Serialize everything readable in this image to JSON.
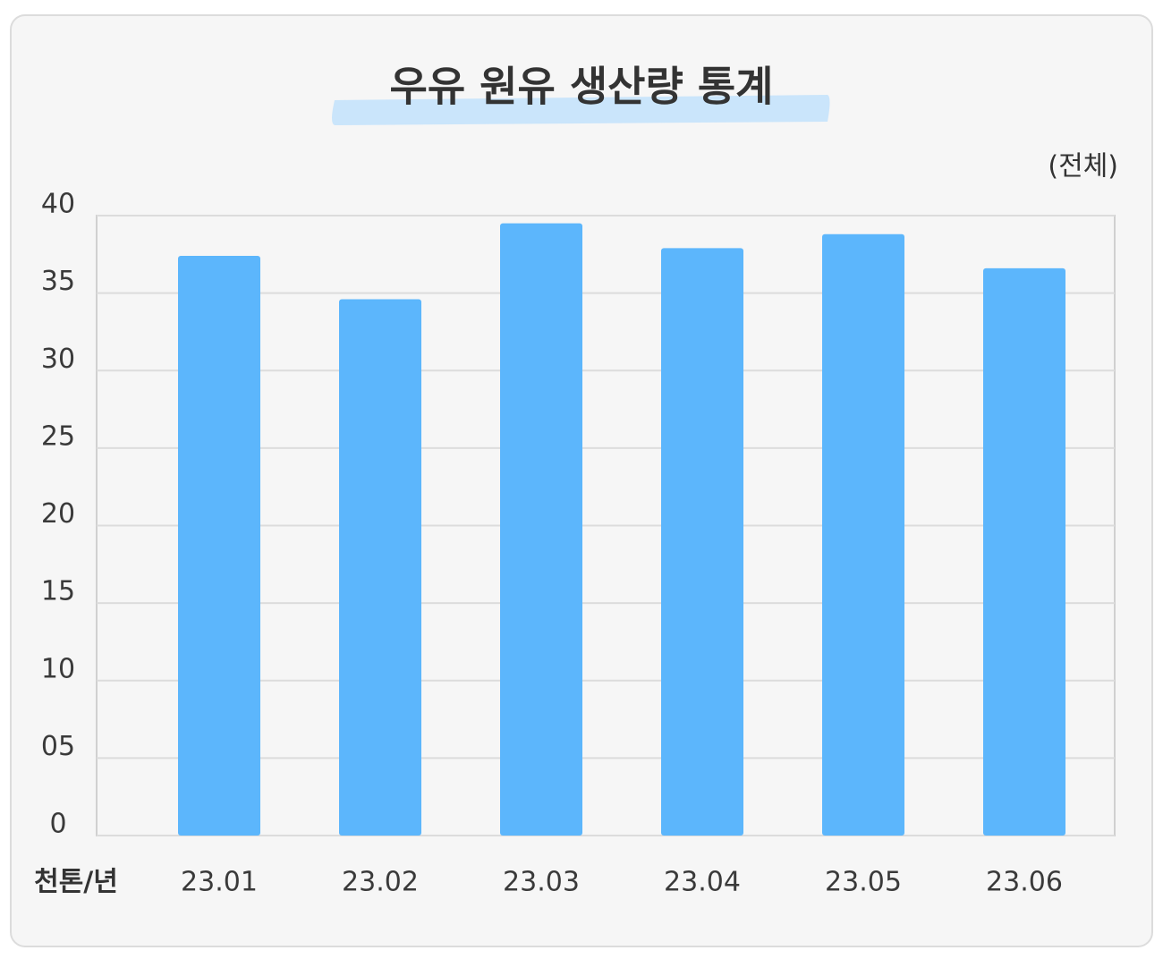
{
  "chart_data": {
    "type": "bar",
    "title": "우유 원유 생산량 통계",
    "subtitle": "(전체)",
    "x_label": "천톤/년",
    "categories": [
      "23.01",
      "23.02",
      "23.03",
      "23.04",
      "23.05",
      "23.06"
    ],
    "values": [
      37.4,
      34.6,
      39.5,
      37.9,
      38.8,
      36.6
    ],
    "color": "#5cb6fc",
    "ylim": [
      0,
      40
    ],
    "yticks": [
      0,
      {
        "value": 5,
        "label": "05"
      },
      10,
      15,
      20,
      25,
      30,
      35,
      40
    ],
    "grid": true
  }
}
